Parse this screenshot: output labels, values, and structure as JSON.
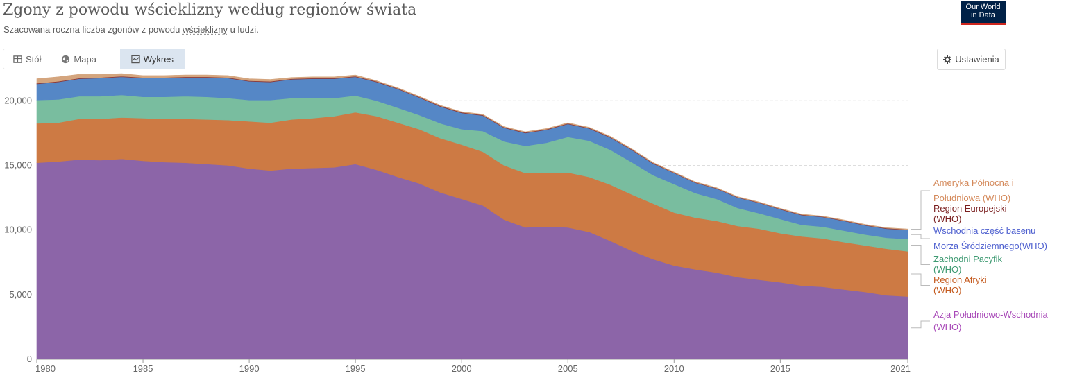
{
  "header": {
    "title": "Zgony z powodu wścieklizny według regionów świata",
    "subtitle_before": "Szacowana roczna liczba zgonów z powodu ",
    "subtitle_term": "wścieklizny",
    "subtitle_after": " u ludzi.",
    "logo_line1": "Our World",
    "logo_line2": "in Data"
  },
  "tabs": [
    {
      "label": "Stół",
      "icon": "table-icon"
    },
    {
      "label": "Mapa",
      "icon": "globe-icon"
    },
    {
      "label": "Wykres",
      "icon": "chart-icon",
      "active": true
    }
  ],
  "settings_label": "Ustawienia",
  "chart_data": {
    "type": "area",
    "stacked": true,
    "x": [
      1980,
      1981,
      1982,
      1983,
      1984,
      1985,
      1986,
      1987,
      1988,
      1989,
      1990,
      1991,
      1992,
      1993,
      1994,
      1995,
      1996,
      1997,
      1998,
      1999,
      2000,
      2001,
      2002,
      2003,
      2004,
      2005,
      2006,
      2007,
      2008,
      2009,
      2010,
      2011,
      2012,
      2013,
      2014,
      2015,
      2016,
      2017,
      2018,
      2019,
      2020,
      2021
    ],
    "xlim": [
      1980,
      2021
    ],
    "ylim": [
      0,
      22000
    ],
    "x_ticks": [
      1980,
      1985,
      1990,
      1995,
      2000,
      2005,
      2010,
      2015,
      2021
    ],
    "y_ticks": [
      0,
      5000,
      10000,
      15000,
      20000
    ],
    "y_tick_labels": [
      "0",
      "5,000",
      "10,000",
      "15,000",
      "20,000"
    ],
    "grid": "horizontal-dashed",
    "legend": "right",
    "series": [
      {
        "name": "Azja Południowo-Wschodnia (WHO)",
        "color": "#8c65a8",
        "values": [
          15200,
          15300,
          15450,
          15400,
          15500,
          15350,
          15250,
          15200,
          15100,
          15000,
          14750,
          14600,
          14750,
          14800,
          14850,
          15100,
          14650,
          14100,
          13600,
          12900,
          12400,
          11900,
          10800,
          10200,
          10250,
          10200,
          9850,
          9150,
          8400,
          7750,
          7250,
          6950,
          6700,
          6350,
          6150,
          5950,
          5700,
          5600,
          5400,
          5200,
          4950,
          4850
        ]
      },
      {
        "name": "Region Afryki (WHO)",
        "color": "#cd7a44",
        "values": [
          3050,
          3000,
          3150,
          3200,
          3200,
          3300,
          3350,
          3400,
          3450,
          3500,
          3650,
          3700,
          3800,
          3850,
          3950,
          4000,
          4150,
          4200,
          4200,
          4200,
          4200,
          4150,
          4200,
          4200,
          4200,
          4250,
          4250,
          4350,
          4350,
          4300,
          4100,
          4000,
          4000,
          3950,
          3950,
          3800,
          3800,
          3750,
          3650,
          3600,
          3600,
          3500
        ]
      },
      {
        "name": "Zachodni Pacyfik (WHO)",
        "color": "#79bd9f",
        "values": [
          1800,
          1800,
          1750,
          1750,
          1750,
          1650,
          1700,
          1750,
          1750,
          1700,
          1650,
          1750,
          1650,
          1550,
          1400,
          1300,
          1200,
          1150,
          1100,
          1150,
          1200,
          1600,
          1850,
          2100,
          2300,
          2750,
          2800,
          2700,
          2500,
          2200,
          2200,
          1900,
          1700,
          1400,
          1200,
          1100,
          900,
          900,
          900,
          850,
          850,
          950
        ]
      },
      {
        "name": "Wschodnia część basenu Morza Śródziemnego(WHO)",
        "color": "#5587c6",
        "values": [
          1250,
          1350,
          1350,
          1400,
          1400,
          1450,
          1450,
          1450,
          1500,
          1550,
          1450,
          1400,
          1450,
          1500,
          1500,
          1450,
          1450,
          1450,
          1350,
          1300,
          1250,
          1200,
          1050,
          1000,
          1000,
          1000,
          950,
          950,
          950,
          900,
          850,
          800,
          800,
          800,
          800,
          750,
          750,
          750,
          750,
          700,
          700,
          700
        ]
      },
      {
        "name": "Region Europejski (WHO)",
        "color": "#8b3a3a",
        "values": [
          50,
          50,
          50,
          50,
          50,
          50,
          50,
          50,
          50,
          50,
          50,
          50,
          50,
          50,
          50,
          50,
          50,
          50,
          50,
          50,
          50,
          50,
          50,
          50,
          50,
          50,
          50,
          50,
          40,
          40,
          40,
          40,
          40,
          40,
          40,
          40,
          40,
          40,
          40,
          40,
          40,
          40
        ]
      },
      {
        "name": "Ameryka Północna i Południowa (WHO)",
        "color": "#d4a57e",
        "values": [
          350,
          350,
          300,
          250,
          200,
          150,
          150,
          150,
          150,
          150,
          150,
          150,
          100,
          100,
          100,
          100,
          50,
          50,
          50,
          50,
          50,
          50,
          50,
          50,
          50,
          50,
          50,
          50,
          50,
          50,
          50,
          40,
          40,
          40,
          40,
          40,
          40,
          40,
          40,
          40,
          40,
          40
        ]
      }
    ],
    "legend_entries": [
      {
        "lines": [
          "Ameryka Północna i",
          "Południowa (WHO)"
        ],
        "color": "#d4895a"
      },
      {
        "lines": [
          "Region Europejski",
          "(WHO)"
        ],
        "color": "#7a1f1f"
      },
      {
        "lines": [
          "Wschodnia część basenu",
          "Morza Śródziemnego(WHO)"
        ],
        "color": "#4d5fcf"
      },
      {
        "lines": [
          "Zachodni Pacyfik",
          "(WHO)"
        ],
        "color": "#3e9a72"
      },
      {
        "lines": [
          "Region Afryki",
          "(WHO)"
        ],
        "color": "#c45a1e"
      },
      {
        "lines": [
          "Azja Południowo-Wschodnia",
          "(WHO)"
        ],
        "color": "#a848b8"
      }
    ]
  }
}
